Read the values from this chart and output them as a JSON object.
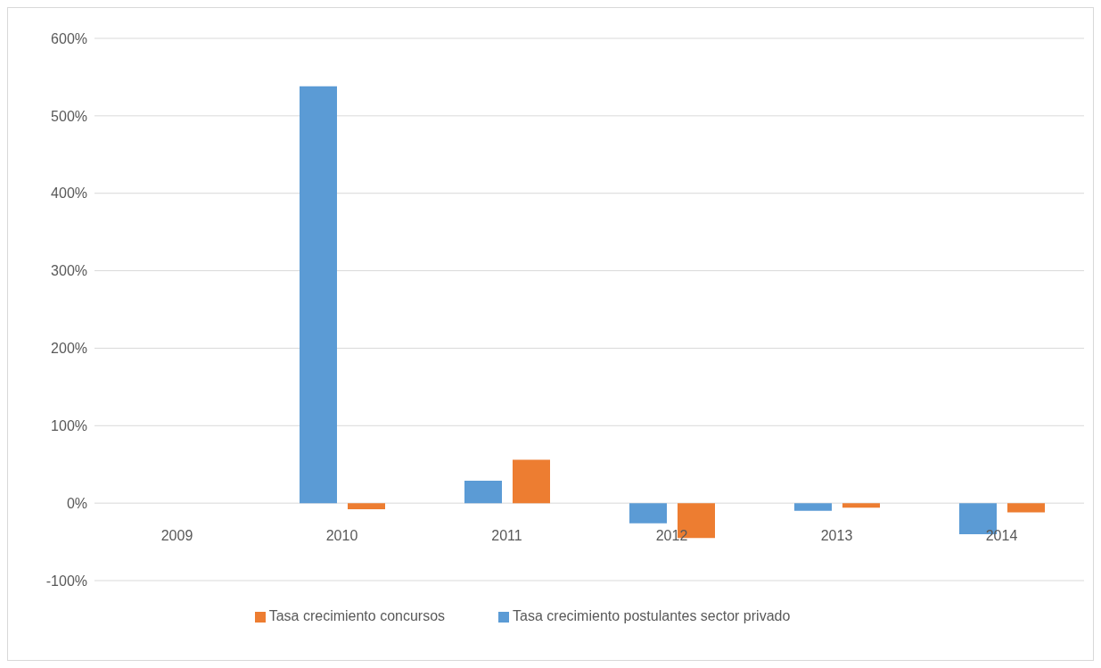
{
  "chart_data": {
    "type": "bar",
    "categories": [
      "2009",
      "2010",
      "2011",
      "2012",
      "2013",
      "2014"
    ],
    "series": [
      {
        "name": "Tasa crecimiento postulantes sector privado",
        "color": "#5b9bd5",
        "values": [
          null,
          538,
          29,
          -26,
          -10,
          -40
        ]
      },
      {
        "name": "Tasa crecimiento concursos",
        "color": "#ed7d31",
        "values": [
          null,
          -8,
          56,
          -45,
          -6,
          -12
        ]
      }
    ],
    "ylim": [
      -100,
      600
    ],
    "yticks": [
      {
        "value": -100,
        "label": "-100%"
      },
      {
        "value": 0,
        "label": "0%"
      },
      {
        "value": 100,
        "label": "100%"
      },
      {
        "value": 200,
        "label": "200%"
      },
      {
        "value": 300,
        "label": "300%"
      },
      {
        "value": 400,
        "label": "400%"
      },
      {
        "value": 500,
        "label": "500%"
      },
      {
        "value": 600,
        "label": "600%"
      }
    ],
    "grid": "y",
    "legend": "bottom"
  }
}
